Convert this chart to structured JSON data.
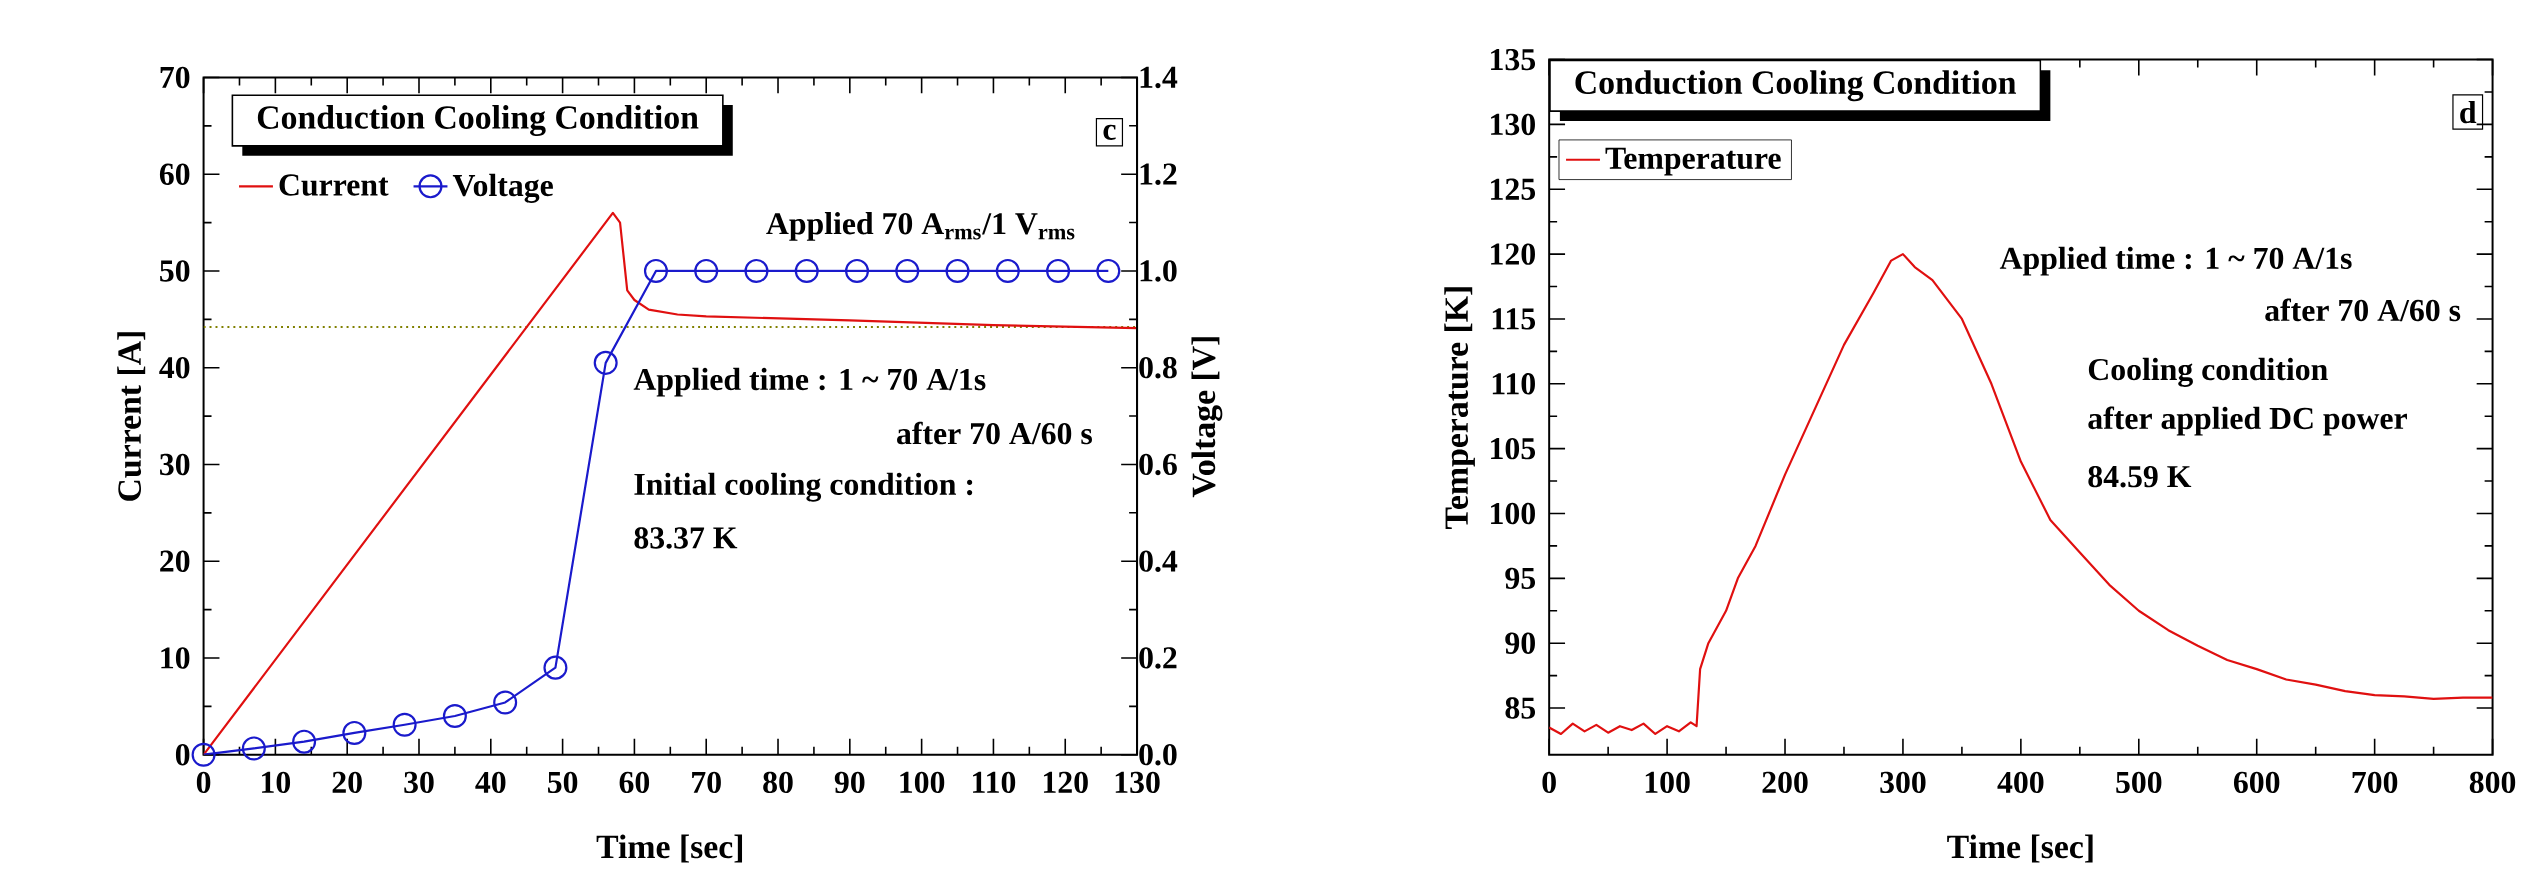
{
  "chart_data": [
    {
      "type": "line",
      "xlabel": "Time [sec]",
      "ylabel": "Current [A]",
      "y2label": "Voltage [V]",
      "xlim": [
        0,
        130
      ],
      "xticks": [
        0,
        10,
        20,
        30,
        40,
        50,
        60,
        70,
        80,
        90,
        100,
        110,
        120,
        130
      ],
      "ylim": [
        0,
        70
      ],
      "yticks": [
        0,
        10,
        20,
        30,
        40,
        50,
        60,
        70
      ],
      "y2lim": [
        0,
        1.4
      ],
      "y2ticks": [
        {
          "value": 0,
          "label": "0.0"
        },
        0.2,
        0.4,
        0.6,
        0.8,
        {
          "value": 1,
          "label": "1.0"
        },
        1.2,
        1.4
      ],
      "series": [
        {
          "name": "Current",
          "color": "#e01010",
          "marker": "none",
          "x": [
            0,
            57,
            58,
            59,
            60,
            62,
            66,
            70,
            90,
            110,
            130
          ],
          "values": [
            0,
            56,
            55,
            48,
            47,
            46,
            45.5,
            45.3,
            44.9,
            44.4,
            44.1
          ]
        },
        {
          "name": "Voltage",
          "color": "#1a1acc",
          "marker": "circle",
          "axis": "y2",
          "x": [
            0,
            7,
            14,
            21,
            28,
            35,
            42,
            49,
            56,
            63,
            70,
            77,
            84,
            91,
            98,
            105,
            112,
            119,
            126
          ],
          "values": [
            0,
            0.013,
            0.027,
            0.045,
            0.062,
            0.08,
            0.108,
            0.18,
            0.81,
            1,
            1,
            1,
            1,
            1,
            1,
            1,
            1,
            1,
            1
          ]
        }
      ],
      "ref_lines": [
        {
          "axis": "y",
          "value": 44.2,
          "color": "#808000",
          "line_style": "dotted"
        }
      ],
      "annotations": [
        "Conduction Cooling Condition",
        "c",
        "Applied 70 A$_{rms}$/1 V$_{rms}$",
        "Applied time : 1 ~ 70 A/1s",
        "after 70 A/60 s",
        "Initial cooling condition :",
        "83.37 K"
      ],
      "legend": "top left",
      "line_style": "solid"
    },
    {
      "type": "line",
      "xlabel": "Time [sec]",
      "ylabel": "Temperature [K]",
      "xlim": [
        0,
        800
      ],
      "xticks": [
        0,
        100,
        200,
        300,
        400,
        500,
        600,
        700,
        800
      ],
      "ylim": [
        81.4,
        135
      ],
      "yticks": [
        85,
        90,
        95,
        100,
        105,
        110,
        115,
        120,
        125,
        130,
        135
      ],
      "series": [
        {
          "name": "Temperature",
          "color": "#e01010",
          "marker": "none",
          "x": [
            0,
            10,
            20,
            30,
            40,
            50,
            60,
            70,
            80,
            90,
            100,
            110,
            120,
            125,
            128,
            135,
            150,
            160,
            175,
            200,
            225,
            250,
            275,
            290,
            300,
            310,
            325,
            350,
            375,
            400,
            425,
            450,
            475,
            500,
            525,
            550,
            575,
            600,
            625,
            650,
            675,
            700,
            725,
            750,
            775,
            800
          ],
          "values": [
            83.5,
            83,
            83.8,
            83.2,
            83.7,
            83.1,
            83.6,
            83.3,
            83.8,
            83,
            83.6,
            83.2,
            83.9,
            83.6,
            88,
            90,
            92.5,
            95,
            97.5,
            103,
            108,
            113,
            117,
            119.5,
            120,
            119,
            118,
            115,
            110,
            104,
            99.5,
            97,
            94.5,
            92.5,
            91,
            89.8,
            88.7,
            88,
            87.2,
            86.8,
            86.3,
            86,
            85.9,
            85.7,
            85.8,
            85.8
          ]
        }
      ],
      "annotations": [
        "Conduction Cooling Condition",
        "d",
        "Applied time : 1 ~ 70 A/1s",
        "after 70 A/60 s",
        "Cooling condition",
        "after applied DC power",
        "84.59 K"
      ],
      "legend": "top left",
      "line_style": "solid"
    }
  ]
}
